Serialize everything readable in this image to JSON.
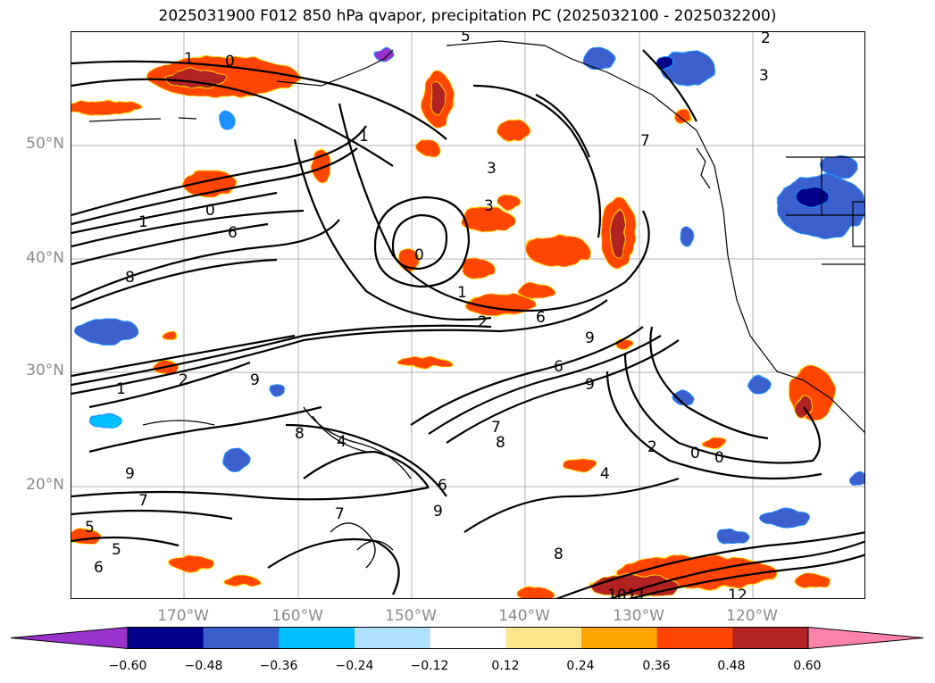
{
  "title": "2025031900 F012 850 hPa qvapor, precipitation PC (2025032100 - 2025032200)",
  "axes": {
    "lat_labels": [
      "50°N",
      "40°N",
      "30°N",
      "20°N"
    ],
    "lon_labels": [
      "170°W",
      "160°W",
      "150°W",
      "140°W",
      "130°W",
      "120°W"
    ]
  },
  "colorbar": {
    "ticks": [
      "−0.60",
      "−0.48",
      "−0.36",
      "−0.24",
      "−0.12",
      "0.12",
      "0.24",
      "0.36",
      "0.48",
      "0.60"
    ],
    "colors": [
      "#9a32cd",
      "#00008b",
      "#3a5fcd",
      "#00bfff",
      "#b0e2ff",
      "#ffffff",
      "#ffe68c",
      "#ffa500",
      "#ff4500",
      "#b22222",
      "#ff82ab"
    ],
    "extend": "both"
  },
  "contour_labels": [
    "1",
    "0",
    "5",
    "2",
    "3",
    "1",
    "7",
    "3",
    "3",
    "0",
    "1",
    "6",
    "8",
    "1",
    "2",
    "0",
    "9",
    "6",
    "7",
    "2",
    "8",
    "9",
    "4",
    "6",
    "5",
    "1",
    "9",
    "7",
    "0",
    "0",
    "2",
    "4",
    "6",
    "9",
    "8",
    "10",
    "11",
    "12",
    "6",
    "8",
    "7",
    "9",
    "5"
  ]
}
